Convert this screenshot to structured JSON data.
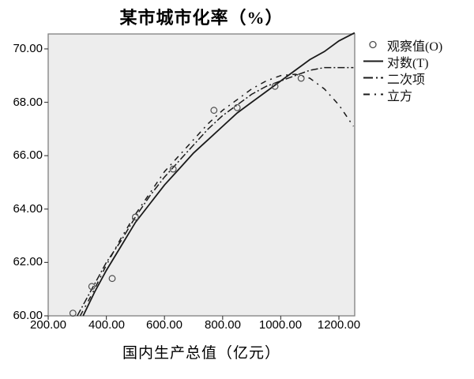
{
  "chart_data": {
    "type": "line",
    "title": "某市城市化率（%）",
    "xlabel": "国内生产总值（亿元）",
    "ylabel": "",
    "xlim": [
      200,
      1254.3
    ],
    "ylim": [
      60,
      70.56
    ],
    "xticks": [
      200,
      400,
      600,
      800,
      1000,
      1200
    ],
    "xtick_labels": [
      "200.00",
      "400.00",
      "600.00",
      "800.00",
      "1000.00",
      "1200.00"
    ],
    "yticks": [
      60,
      62,
      64,
      66,
      68,
      70
    ],
    "ytick_labels": [
      "60.00",
      "62.00",
      "64.00",
      "66.00",
      "68.00",
      "70.00"
    ],
    "grid": false,
    "legend_position": "right",
    "observed": {
      "name": "观察值(O)",
      "marker": "open-circle",
      "points": [
        [
          285,
          60.1
        ],
        [
          350,
          61.1
        ],
        [
          420,
          61.4
        ],
        [
          500,
          63.7
        ],
        [
          630,
          65.5
        ],
        [
          770,
          67.7
        ],
        [
          850,
          67.8
        ],
        [
          980,
          68.6
        ],
        [
          1070,
          68.9
        ]
      ]
    },
    "series": [
      {
        "name": "立方",
        "style": "sparse-dashdot",
        "points": [
          [
            310,
            60.0
          ],
          [
            350,
            60.8
          ],
          [
            400,
            61.9
          ],
          [
            450,
            62.9
          ],
          [
            500,
            63.8
          ],
          [
            550,
            64.6
          ],
          [
            600,
            65.4
          ],
          [
            650,
            66.0
          ],
          [
            700,
            66.6
          ],
          [
            750,
            67.2
          ],
          [
            800,
            67.7
          ],
          [
            850,
            68.1
          ],
          [
            900,
            68.5
          ],
          [
            950,
            68.8
          ],
          [
            1000,
            69.0
          ],
          [
            1050,
            69.05
          ],
          [
            1100,
            68.9
          ],
          [
            1150,
            68.5
          ],
          [
            1200,
            67.9
          ],
          [
            1250,
            67.1
          ]
        ]
      },
      {
        "name": "二次项",
        "style": "dashdot",
        "points": [
          [
            300,
            60.0
          ],
          [
            350,
            61.0
          ],
          [
            400,
            62.0
          ],
          [
            450,
            62.8
          ],
          [
            500,
            63.7
          ],
          [
            550,
            64.5
          ],
          [
            600,
            65.2
          ],
          [
            650,
            65.8
          ],
          [
            700,
            66.4
          ],
          [
            750,
            67.0
          ],
          [
            800,
            67.5
          ],
          [
            850,
            67.9
          ],
          [
            900,
            68.3
          ],
          [
            950,
            68.6
          ],
          [
            1000,
            68.8
          ],
          [
            1050,
            69.0
          ],
          [
            1100,
            69.2
          ],
          [
            1150,
            69.3
          ],
          [
            1200,
            69.3
          ],
          [
            1250,
            69.3
          ]
        ]
      },
      {
        "name": "对数(T)",
        "style": "solid",
        "points": [
          [
            320,
            60.0
          ],
          [
            360,
            60.9
          ],
          [
            400,
            61.7
          ],
          [
            450,
            62.6
          ],
          [
            500,
            63.5
          ],
          [
            550,
            64.2
          ],
          [
            600,
            64.9
          ],
          [
            650,
            65.5
          ],
          [
            700,
            66.1
          ],
          [
            750,
            66.6
          ],
          [
            800,
            67.1
          ],
          [
            850,
            67.6
          ],
          [
            900,
            68.0
          ],
          [
            950,
            68.4
          ],
          [
            1000,
            68.8
          ],
          [
            1050,
            69.2
          ],
          [
            1100,
            69.6
          ],
          [
            1150,
            69.9
          ],
          [
            1200,
            70.3
          ],
          [
            1254,
            70.6
          ]
        ]
      }
    ]
  },
  "legend": {
    "items": [
      {
        "label": "观察值(O)",
        "marker": "open-circle"
      },
      {
        "label": "对数(T)",
        "marker": "solid-line"
      },
      {
        "label": "二次项",
        "marker": "dashdot-line"
      },
      {
        "label": "立方",
        "marker": "sparse-dashdot-line"
      }
    ]
  },
  "colors": {
    "plot_bg": "#ededed",
    "frame": "#808080",
    "line": "#1a1a1a",
    "marker": "#4d4d4d",
    "tick": "#444444",
    "text": "#000000"
  }
}
